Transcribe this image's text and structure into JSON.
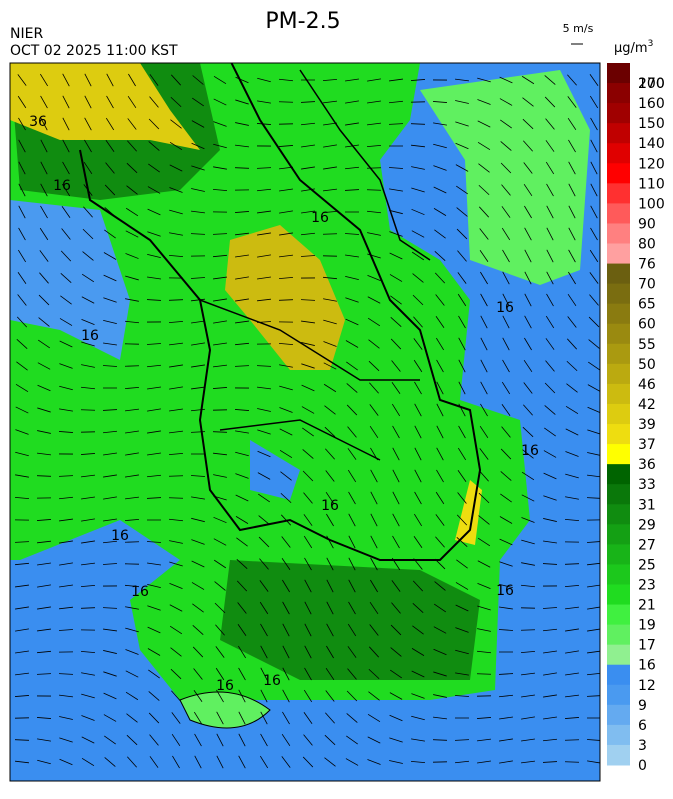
{
  "header": {
    "agency": "NIER",
    "timestamp": "OCT 02 2025 11:00 KST",
    "title": "PM-2.5",
    "wind_scale": "5 m/s",
    "unit": "µg/m",
    "unit_exponent": "3"
  },
  "contour_labels": [
    "36",
    "16",
    "16",
    "16",
    "16",
    "16",
    "16",
    "16",
    "16",
    "16",
    "16",
    "16"
  ],
  "colorbar": {
    "levels": [
      200,
      170,
      160,
      150,
      140,
      120,
      110,
      100,
      90,
      80,
      76,
      70,
      65,
      60,
      55,
      50,
      46,
      42,
      39,
      37,
      36,
      33,
      31,
      29,
      27,
      25,
      23,
      21,
      19,
      17,
      16,
      12,
      9,
      6,
      3,
      0
    ],
    "colors": [
      "#6b0000",
      "#8b0000",
      "#a00000",
      "#c00000",
      "#e00000",
      "#ff0000",
      "#ff3030",
      "#ff5a5a",
      "#ff8080",
      "#ffa0a0",
      "#6b5f10",
      "#7a6d10",
      "#8a7b10",
      "#9a8a10",
      "#aa9a10",
      "#bbaa10",
      "#ccbb10",
      "#ddcc10",
      "#eedd10",
      "#ffff00",
      "#006400",
      "#0a780a",
      "#108c10",
      "#14a014",
      "#18b418",
      "#1cc81c",
      "#20dc20",
      "#40f040",
      "#60f060",
      "#90f090",
      "#3a8ef0",
      "#4a9af0",
      "#64aaf0",
      "#80bdf0",
      "#a0d0f0"
    ]
  }
}
